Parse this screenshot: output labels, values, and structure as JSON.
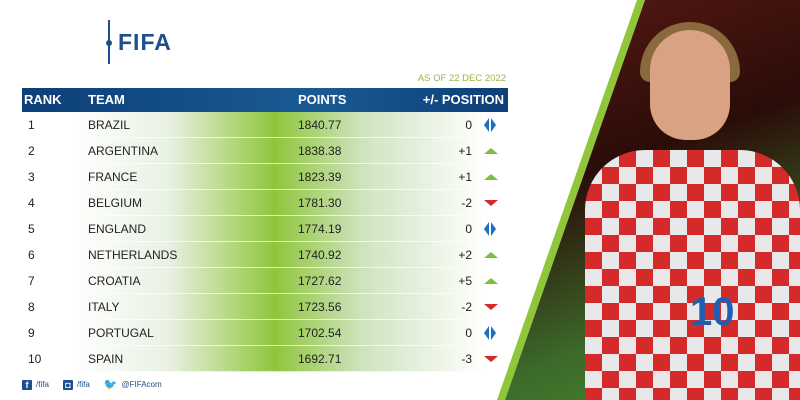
{
  "logo": "FIFA",
  "as_of": "AS OF 22 DEC 2022",
  "headers": {
    "rank": "RANK",
    "team": "TEAM",
    "points": "POINTS",
    "position": "+/- POSITION"
  },
  "rows": [
    {
      "rank": "1",
      "team": "BRAZIL",
      "points": "1840.77",
      "change": "0",
      "trend": "same"
    },
    {
      "rank": "2",
      "team": "ARGENTINA",
      "points": "1838.38",
      "change": "+1",
      "trend": "up"
    },
    {
      "rank": "3",
      "team": "FRANCE",
      "points": "1823.39",
      "change": "+1",
      "trend": "up"
    },
    {
      "rank": "4",
      "team": "BELGIUM",
      "points": "1781.30",
      "change": "-2",
      "trend": "down"
    },
    {
      "rank": "5",
      "team": "ENGLAND",
      "points": "1774.19",
      "change": "0",
      "trend": "same"
    },
    {
      "rank": "6",
      "team": "NETHERLANDS",
      "points": "1740.92",
      "change": "+2",
      "trend": "up"
    },
    {
      "rank": "7",
      "team": "CROATIA",
      "points": "1727.62",
      "change": "+5",
      "trend": "up"
    },
    {
      "rank": "8",
      "team": "ITALY",
      "points": "1723.56",
      "change": "-2",
      "trend": "down"
    },
    {
      "rank": "9",
      "team": "PORTUGAL",
      "points": "1702.54",
      "change": "0",
      "trend": "same"
    },
    {
      "rank": "10",
      "team": "SPAIN",
      "points": "1692.71",
      "change": "-3",
      "trend": "down"
    }
  ],
  "social": {
    "facebook": "/fifa",
    "instagram": "/fifa",
    "twitter": "@FIFAcom"
  },
  "photo": {
    "shirt_number": "10"
  },
  "colors": {
    "brand": "#1d4f8c",
    "up": "#7cbf3a",
    "down": "#d32a2a",
    "same": "#1d6ec0"
  }
}
